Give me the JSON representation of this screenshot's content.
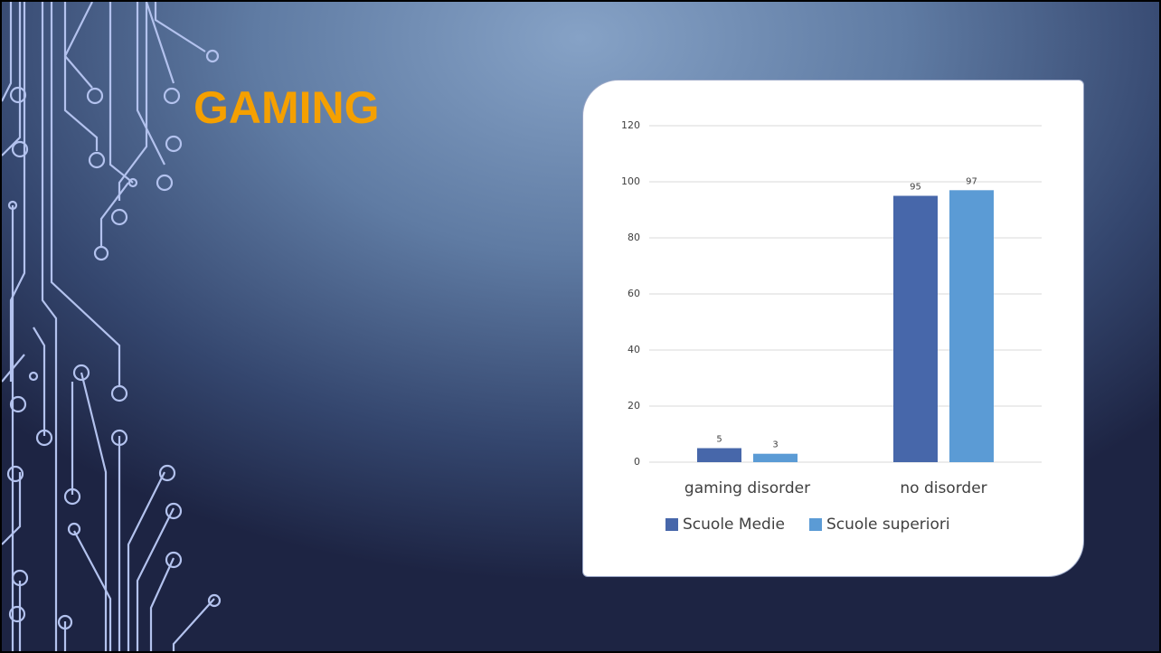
{
  "slide": {
    "title": "GAMING"
  },
  "chart_data": {
    "type": "bar",
    "categories": [
      "gaming disorder",
      "no disorder"
    ],
    "series": [
      {
        "name": "Scuole Medie",
        "color": "#4767aa",
        "values": [
          5,
          95
        ]
      },
      {
        "name": "Scuole superiori",
        "color": "#5b9bd5",
        "values": [
          3,
          97
        ]
      }
    ],
    "ylim": [
      0,
      120
    ],
    "yticks": [
      0,
      20,
      40,
      60,
      80,
      100,
      120
    ],
    "grid": true,
    "legend": "bottom"
  }
}
